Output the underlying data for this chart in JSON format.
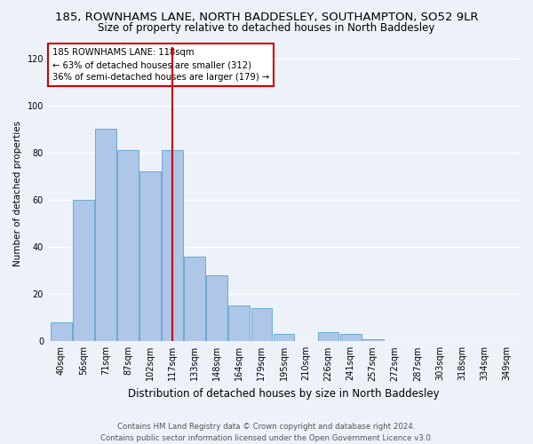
{
  "title": "185, ROWNHAMS LANE, NORTH BADDESLEY, SOUTHAMPTON, SO52 9LR",
  "subtitle": "Size of property relative to detached houses in North Baddesley",
  "xlabel": "Distribution of detached houses by size in North Baddesley",
  "ylabel": "Number of detached properties",
  "categories": [
    "40sqm",
    "56sqm",
    "71sqm",
    "87sqm",
    "102sqm",
    "117sqm",
    "133sqm",
    "148sqm",
    "164sqm",
    "179sqm",
    "195sqm",
    "210sqm",
    "226sqm",
    "241sqm",
    "257sqm",
    "272sqm",
    "287sqm",
    "303sqm",
    "318sqm",
    "334sqm",
    "349sqm"
  ],
  "values": [
    8,
    60,
    90,
    81,
    72,
    81,
    36,
    28,
    15,
    14,
    3,
    0,
    4,
    3,
    1,
    0,
    0,
    0,
    0,
    0,
    0
  ],
  "bar_color": "#aec6e8",
  "bar_edge_color": "#6aaad4",
  "marker_bin_index": 5,
  "marker_color": "#cc0000",
  "annotation_line1": "185 ROWNHAMS LANE: 118sqm",
  "annotation_line2": "← 63% of detached houses are smaller (312)",
  "annotation_line3": "36% of semi-detached houses are larger (179) →",
  "annotation_box_color": "#cc0000",
  "ylim": [
    0,
    125
  ],
  "yticks": [
    0,
    20,
    40,
    60,
    80,
    100,
    120
  ],
  "footer_line1": "Contains HM Land Registry data © Crown copyright and database right 2024.",
  "footer_line2": "Contains public sector information licensed under the Open Government Licence v3.0.",
  "bg_color": "#edf2f9",
  "plot_bg_color": "#edf2f9",
  "grid_color": "#ffffff",
  "title_fontsize": 9.5,
  "subtitle_fontsize": 8.5,
  "xlabel_fontsize": 8.5,
  "ylabel_fontsize": 7.5,
  "tick_fontsize": 7,
  "annotation_fontsize": 7.2,
  "footer_fontsize": 6.2
}
